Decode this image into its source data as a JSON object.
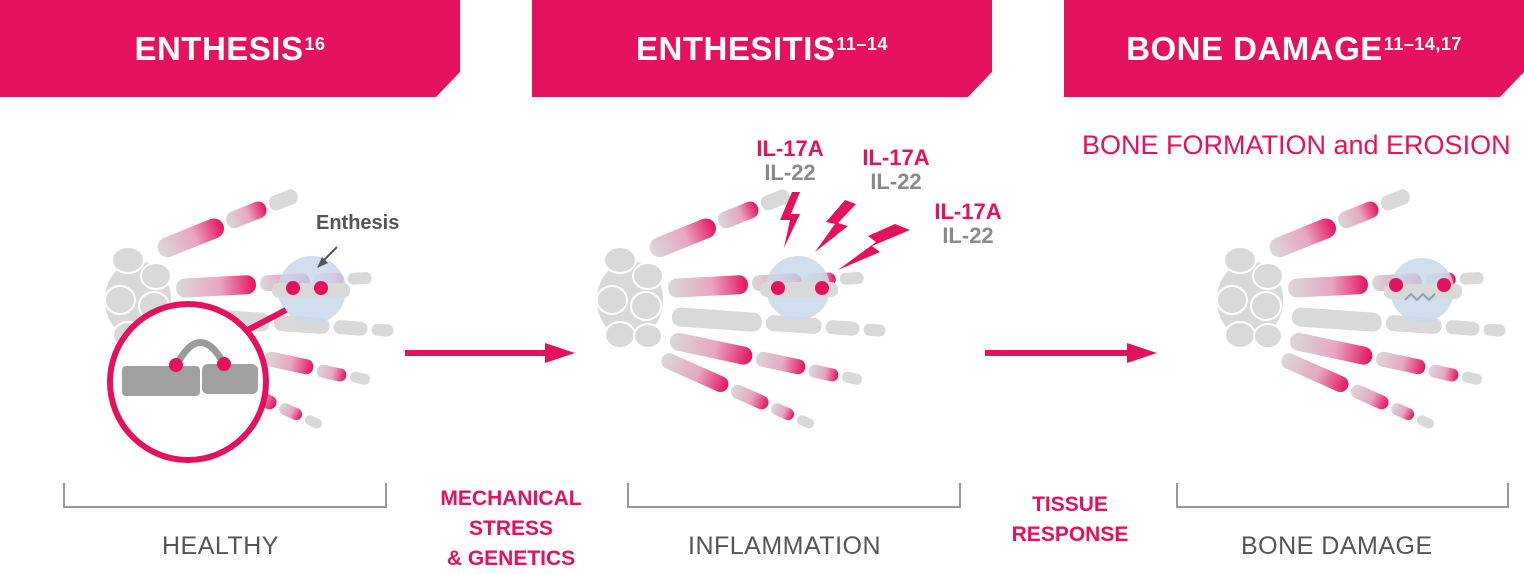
{
  "panels": [
    {
      "title": "ENTHESIS",
      "sup": "16",
      "label": "HEALTHY"
    },
    {
      "title": "ENTHESITIS",
      "sup": "11–14",
      "label": "INFLAMMATION"
    },
    {
      "title": "BONE DAMAGE",
      "sup": "11–14,17",
      "label": "BONE DAMAGE"
    }
  ],
  "transitions": [
    {
      "lines": [
        "MECHANICAL",
        "STRESS",
        "& GENETICS"
      ]
    },
    {
      "lines": [
        "TISSUE",
        "RESPONSE"
      ]
    }
  ],
  "enthesis_label": "Enthesis",
  "cytokines": [
    {
      "a": "IL-17A",
      "b": "IL-22"
    },
    {
      "a": "IL-17A",
      "b": "IL-22"
    },
    {
      "a": "IL-17A",
      "b": "IL-22"
    }
  ],
  "bone_subtitle": "BONE FORMATION and EROSION",
  "colors": {
    "accent": "#e4115f",
    "bone": "#d9d9d9",
    "highlight": "#c9d8ea",
    "text": "#555555"
  }
}
